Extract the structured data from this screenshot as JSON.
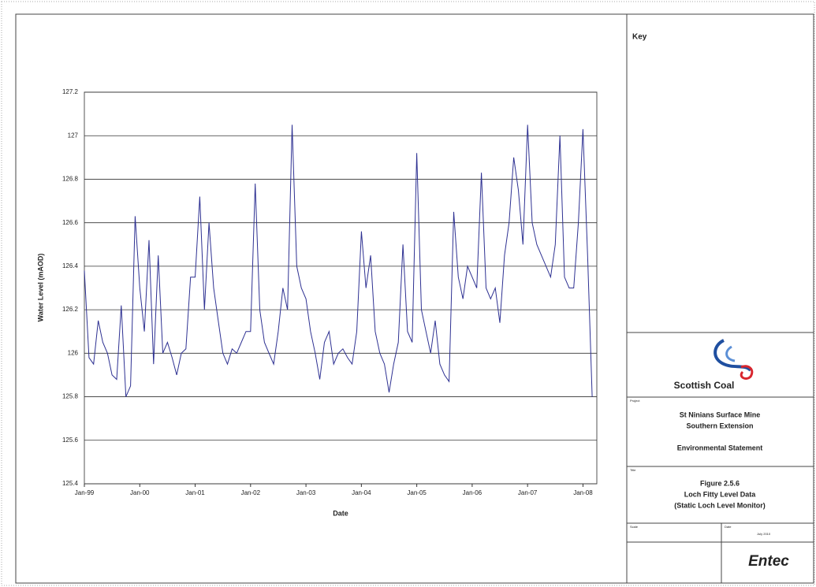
{
  "chart_data": {
    "type": "line",
    "y_label": "Water Level (mAOD)",
    "x_label": "Date",
    "x": [
      "1999-01",
      "1999-02",
      "1999-03",
      "1999-04",
      "1999-05",
      "1999-06",
      "1999-07",
      "1999-08",
      "1999-09",
      "1999-10",
      "1999-11",
      "1999-12",
      "2000-01",
      "2000-02",
      "2000-03",
      "2000-04",
      "2000-05",
      "2000-06",
      "2000-07",
      "2000-08",
      "2000-09",
      "2000-10",
      "2000-11",
      "2000-12",
      "2001-01",
      "2001-02",
      "2001-03",
      "2001-04",
      "2001-05",
      "2001-06",
      "2001-07",
      "2001-08",
      "2001-09",
      "2001-10",
      "2001-11",
      "2001-12",
      "2002-01",
      "2002-02",
      "2002-03",
      "2002-04",
      "2002-05",
      "2002-06",
      "2002-07",
      "2002-08",
      "2002-09",
      "2002-10",
      "2002-11",
      "2002-12",
      "2003-01",
      "2003-02",
      "2003-03",
      "2003-04",
      "2003-05",
      "2003-06",
      "2003-07",
      "2003-08",
      "2003-09",
      "2003-10",
      "2003-11",
      "2003-12",
      "2004-01",
      "2004-02",
      "2004-03",
      "2004-04",
      "2004-05",
      "2004-06",
      "2004-07",
      "2004-08",
      "2004-09",
      "2004-10",
      "2004-11",
      "2004-12",
      "2005-01",
      "2005-02",
      "2005-03",
      "2005-04",
      "2005-05",
      "2005-06",
      "2005-07",
      "2005-08",
      "2005-09",
      "2005-10",
      "2005-11",
      "2005-12",
      "2006-01",
      "2006-02",
      "2006-03",
      "2006-04",
      "2006-05",
      "2006-06",
      "2006-07",
      "2006-08",
      "2006-09",
      "2006-10",
      "2006-11",
      "2006-12",
      "2007-01",
      "2007-02",
      "2007-03",
      "2007-04",
      "2007-05",
      "2007-06",
      "2007-07",
      "2007-08",
      "2007-09",
      "2007-10",
      "2007-11",
      "2007-12",
      "2008-01",
      "2008-02",
      "2008-03"
    ],
    "values": [
      126.38,
      125.98,
      125.95,
      126.15,
      126.05,
      126.0,
      125.9,
      125.88,
      126.22,
      125.8,
      125.85,
      126.63,
      126.3,
      126.1,
      126.52,
      125.95,
      126.45,
      126.0,
      126.05,
      125.98,
      125.9,
      126.0,
      126.02,
      126.35,
      126.35,
      126.72,
      126.2,
      126.6,
      126.3,
      126.15,
      126.0,
      125.95,
      126.02,
      126.0,
      126.05,
      126.1,
      126.1,
      126.78,
      126.2,
      126.05,
      126.0,
      125.95,
      126.1,
      126.3,
      126.2,
      127.05,
      126.4,
      126.3,
      126.25,
      126.1,
      126.0,
      125.88,
      126.05,
      126.1,
      125.95,
      126.0,
      126.02,
      125.98,
      125.95,
      126.1,
      126.56,
      126.3,
      126.45,
      126.1,
      126.0,
      125.95,
      125.82,
      125.95,
      126.05,
      126.5,
      126.1,
      126.05,
      126.92,
      126.2,
      126.1,
      126.0,
      126.15,
      125.95,
      125.9,
      125.87,
      126.65,
      126.35,
      126.25,
      126.4,
      126.35,
      126.3,
      126.83,
      126.3,
      126.25,
      126.3,
      126.14,
      126.45,
      126.6,
      126.9,
      126.75,
      126.5,
      127.05,
      126.6,
      126.5,
      126.45,
      126.4,
      126.35,
      126.5,
      127.0,
      126.35,
      126.3,
      126.3,
      126.6,
      127.03,
      126.45,
      125.8
    ],
    "color": "#2e3192",
    "xlim": [
      "1999-01",
      "2008-04"
    ],
    "xticks": [
      {
        "value": "1999-01",
        "label": "Jan-99"
      },
      {
        "value": "2000-01",
        "label": "Jan-00"
      },
      {
        "value": "2001-01",
        "label": "Jan-01"
      },
      {
        "value": "2002-01",
        "label": "Jan-02"
      },
      {
        "value": "2003-01",
        "label": "Jan-03"
      },
      {
        "value": "2004-01",
        "label": "Jan-04"
      },
      {
        "value": "2005-01",
        "label": "Jan-05"
      },
      {
        "value": "2006-01",
        "label": "Jan-06"
      },
      {
        "value": "2007-01",
        "label": "Jan-07"
      },
      {
        "value": "2008-01",
        "label": "Jan-08"
      }
    ],
    "ylim": [
      125.4,
      127.2
    ],
    "yticks": [
      125.4,
      125.6,
      125.8,
      126,
      126.2,
      126.4,
      126.6,
      126.8,
      127,
      127.2
    ],
    "grid": true
  },
  "title_block": {
    "key": "Key",
    "logo": "Scottish Coal",
    "project_label": "Project",
    "project": [
      "St Ninians Surface Mine",
      "Southern Extension",
      "Environmental Statement"
    ],
    "title_label": "Title",
    "title": [
      "Figure 2.5.6",
      "Loch Fitty Level Data",
      "(Static Loch Level Monitor)"
    ],
    "scale_label": "Scale",
    "date_label": "Date",
    "date": "July 2010",
    "company": "Entec"
  }
}
